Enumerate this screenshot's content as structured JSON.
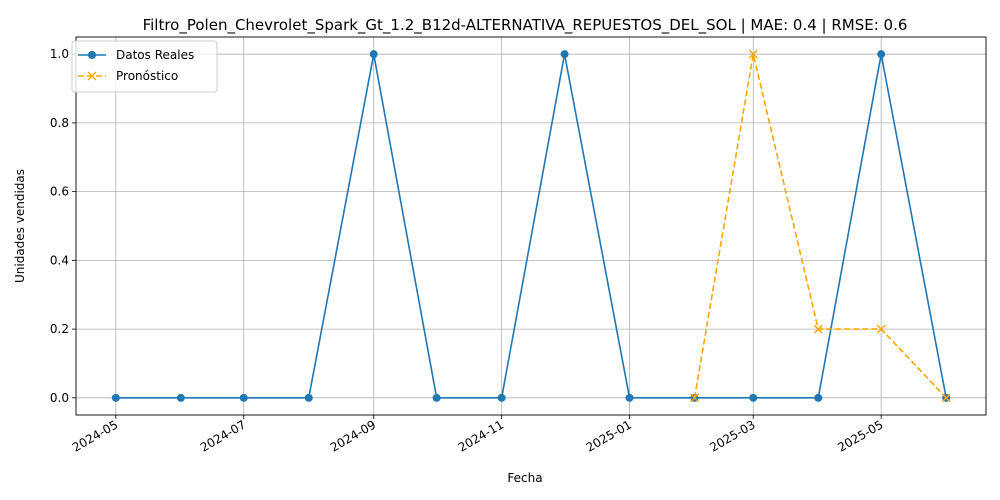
{
  "chart_data": {
    "type": "line",
    "title": "Filtro_Polen_Chevrolet_Spark_Gt_1.2_B12d-ALTERNATIVA_REPUESTOS_DEL_SOL | MAE: 0.4 | RMSE: 0.6",
    "xlabel": "Fecha",
    "ylabel": "Unidades vendidas",
    "x_ticks": [
      "2024-05",
      "2024-07",
      "2024-09",
      "2024-11",
      "2025-01",
      "2025-03",
      "2025-05"
    ],
    "y_ticks": [
      "0.0",
      "0.2",
      "0.4",
      "0.6",
      "0.8",
      "1.0"
    ],
    "ylim": [
      -0.05,
      1.05
    ],
    "xlim": [
      "2024-04-12",
      "2025-06-20"
    ],
    "grid": true,
    "legend_position": "upper-left",
    "series": [
      {
        "name": "Datos Reales",
        "color": "#1f77b4",
        "marker": "circle",
        "linestyle": "solid",
        "x": [
          "2024-05-01",
          "2024-06-01",
          "2024-07-01",
          "2024-08-01",
          "2024-09-01",
          "2024-10-01",
          "2024-11-01",
          "2024-12-01",
          "2025-01-01",
          "2025-02-01",
          "2025-03-01",
          "2025-04-01",
          "2025-05-01",
          "2025-06-01"
        ],
        "values": [
          0,
          0,
          0,
          0,
          1,
          0,
          0,
          1,
          0,
          0,
          0,
          0,
          1,
          0
        ]
      },
      {
        "name": "Pronóstico",
        "color": "#ffa500",
        "marker": "x",
        "linestyle": "dashed",
        "x": [
          "2025-02-01",
          "2025-03-01",
          "2025-04-01",
          "2025-05-01",
          "2025-06-01"
        ],
        "values": [
          0,
          1,
          0.2,
          0.2,
          0
        ]
      }
    ]
  }
}
